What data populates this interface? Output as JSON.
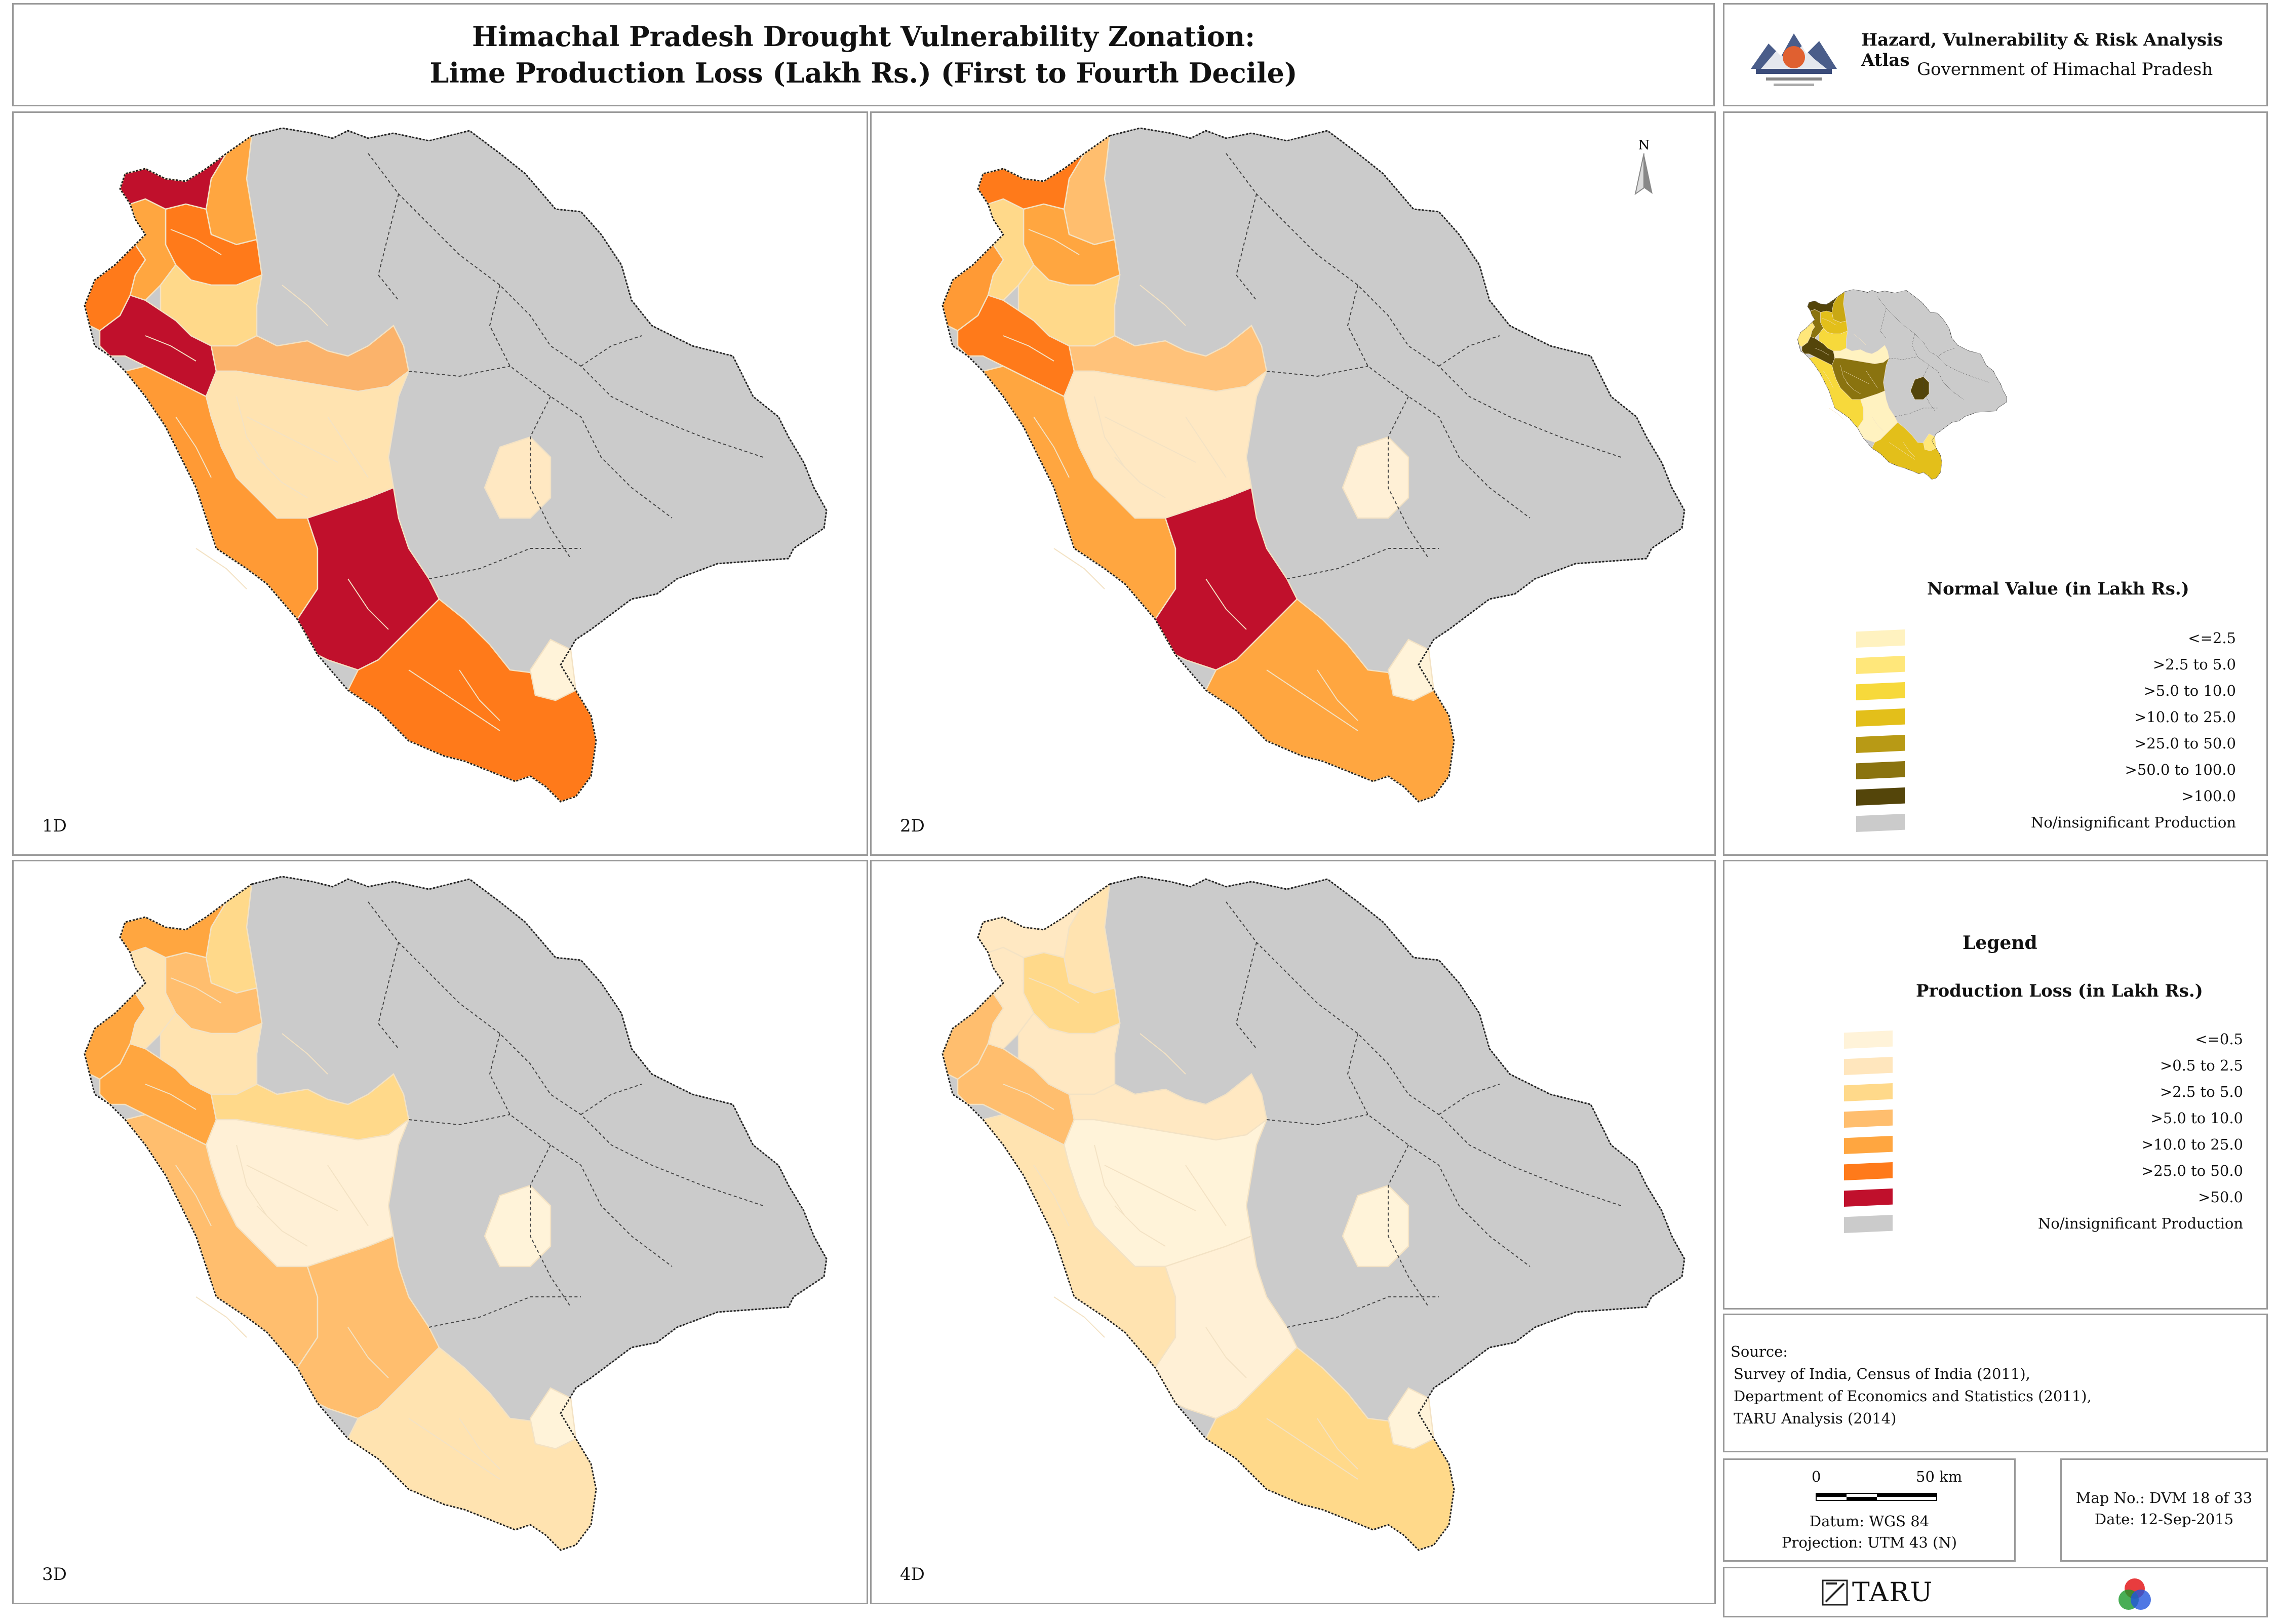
{
  "title": {
    "line1": "Himachal Pradesh Drought Vulnerability Zonation:",
    "line2": "Lime Production Loss (Lakh Rs.) (First to Fourth Decile)"
  },
  "atlas": {
    "title": "Hazard, Vulnerability & Risk Analysis Atlas",
    "subtitle": "Government of Himachal Pradesh",
    "emblem_icon": "himachal-emblem-icon"
  },
  "maps": [
    {
      "label": "1D",
      "fills": [
        "#ffa640",
        "#c0102c",
        "#ff7a1a",
        "#ffa640",
        "#ff7a1a",
        "#ffd98a",
        "#c0102c",
        "#fbb36b",
        "#ffe3b0",
        "#ffe8c2",
        "#ff9a35",
        "#c0102c",
        "#ff7a1a",
        "#fff3d9"
      ]
    },
    {
      "label": "2D",
      "fills": [
        "#ffbe6e",
        "#ff7a1a",
        "#ffa640",
        "#ffd98a",
        "#ff9a35",
        "#ffd98a",
        "#ff7a1a",
        "#ffc27a",
        "#ffe8c2",
        "#fff0d6",
        "#ffa640",
        "#c0102c",
        "#ffa640",
        "#fff3d9"
      ]
    },
    {
      "label": "3D",
      "fills": [
        "#ffd98a",
        "#ffa640",
        "#ffbe6e",
        "#ffe3b0",
        "#ffa640",
        "#ffe3b0",
        "#ffa640",
        "#ffd98a",
        "#fff0d6",
        "#fff3d9",
        "#ffbe6e",
        "#ffbe6e",
        "#ffe3b0",
        "#fff3d9"
      ]
    },
    {
      "label": "4D",
      "fills": [
        "#ffe3b0",
        "#ffe8c2",
        "#ffd98a",
        "#ffe8c2",
        "#ffbe6e",
        "#ffe8c2",
        "#ffbe6e",
        "#ffe8c2",
        "#fff3d9",
        "#fff3d9",
        "#ffe3b0",
        "#fff0d6",
        "#ffd98a",
        "#fff3d9"
      ]
    }
  ],
  "no_data_color": "#cbcbcb",
  "north_label": "N",
  "normal_legend": {
    "title": "Normal Value (in Lakh Rs.)",
    "items": [
      {
        "label": "<=2.5",
        "color": "#fff2c0"
      },
      {
        "label": ">2.5 to 5.0",
        "color": "#ffe77a"
      },
      {
        "label": ">5.0 to 10.0",
        "color": "#f7d93b"
      },
      {
        "label": ">10.0 to 25.0",
        "color": "#e3bf1a"
      },
      {
        "label": ">25.0 to 50.0",
        "color": "#b89a15"
      },
      {
        "label": ">50.0 to 100.0",
        "color": "#8a730f"
      },
      {
        "label": ">100.0",
        "color": "#54450a"
      },
      {
        "label": "No/insignificant Production",
        "color": "#cbcbcb"
      }
    ],
    "overview_fills": [
      "#c9a814",
      "#54450a",
      "#e3bf1a",
      "#8a730f",
      "#ffe77a",
      "#f7d93b",
      "#54450a",
      "#fff2c0",
      "#8a730f",
      "#54450a",
      "#f7d93b",
      "#fff2c0",
      "#e3bf1a",
      "#ffe77a"
    ]
  },
  "legend": {
    "heading": "Legend",
    "title": "Production Loss (in Lakh Rs.)",
    "items": [
      {
        "label": "<=0.5",
        "color": "#fff3d9"
      },
      {
        "label": ">0.5 to 2.5",
        "color": "#ffe6bd"
      },
      {
        "label": ">2.5 to 5.0",
        "color": "#ffd98a"
      },
      {
        "label": ">5.0 to 10.0",
        "color": "#ffbe6e"
      },
      {
        "label": ">10.0 to 25.0",
        "color": "#ffa640"
      },
      {
        "label": ">25.0 to 50.0",
        "color": "#ff7a1a"
      },
      {
        "label": ">50.0",
        "color": "#c0102c"
      },
      {
        "label": "No/insignificant Production",
        "color": "#cbcbcb"
      }
    ]
  },
  "source": {
    "heading": "Source:",
    "lines": [
      "Survey of India, Census of India (2011),",
      "Department of Economics and Statistics (2011),",
      "TARU Analysis (2014)"
    ]
  },
  "scale": {
    "zero": "0",
    "end": "50 km",
    "datum": "Datum: WGS 84",
    "projection": "Projection: UTM 43 (N)"
  },
  "map_info": {
    "number": "Map No.: DVM 18 of 33",
    "date": "Date: 12-Sep-2015"
  },
  "footer": {
    "org": "TARU",
    "org_icon": "taru-logo-icon",
    "rgb_icon": "rgb-circles-icon"
  }
}
